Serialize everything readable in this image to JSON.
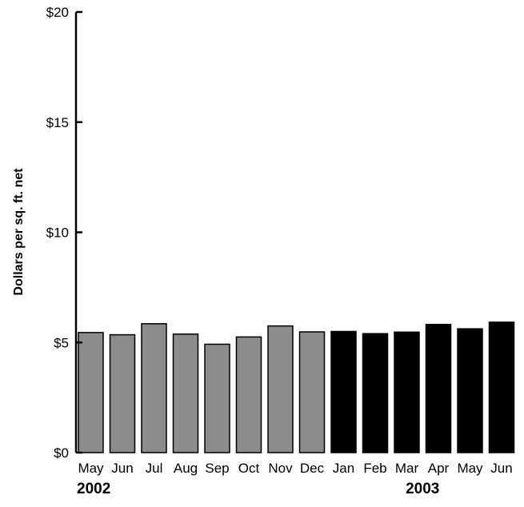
{
  "chart_data": {
    "type": "bar",
    "ylabel": "Dollars per sq. ft. net",
    "ylim": [
      0,
      20
    ],
    "yticks": [
      0,
      5,
      10,
      15,
      20
    ],
    "ytick_labels": [
      "$0",
      "$5",
      "$10",
      "$15",
      "$20"
    ],
    "categories": [
      "May",
      "Jun",
      "Jul",
      "Aug",
      "Sep",
      "Oct",
      "Nov",
      "Dec",
      "Jan",
      "Feb",
      "Mar",
      "Apr",
      "May",
      "Jun"
    ],
    "values": [
      5.45,
      5.35,
      5.85,
      5.38,
      4.92,
      5.25,
      5.75,
      5.48,
      5.5,
      5.4,
      5.47,
      5.82,
      5.62,
      5.92
    ],
    "year_labels": [
      "2002",
      "2003"
    ],
    "year_start_index": [
      0,
      8
    ],
    "bar_colors": [
      "#8c8c8c",
      "#8c8c8c",
      "#8c8c8c",
      "#8c8c8c",
      "#8c8c8c",
      "#8c8c8c",
      "#8c8c8c",
      "#8c8c8c",
      "#000000",
      "#000000",
      "#000000",
      "#000000",
      "#000000",
      "#000000"
    ],
    "grid": false,
    "legend": "none"
  }
}
